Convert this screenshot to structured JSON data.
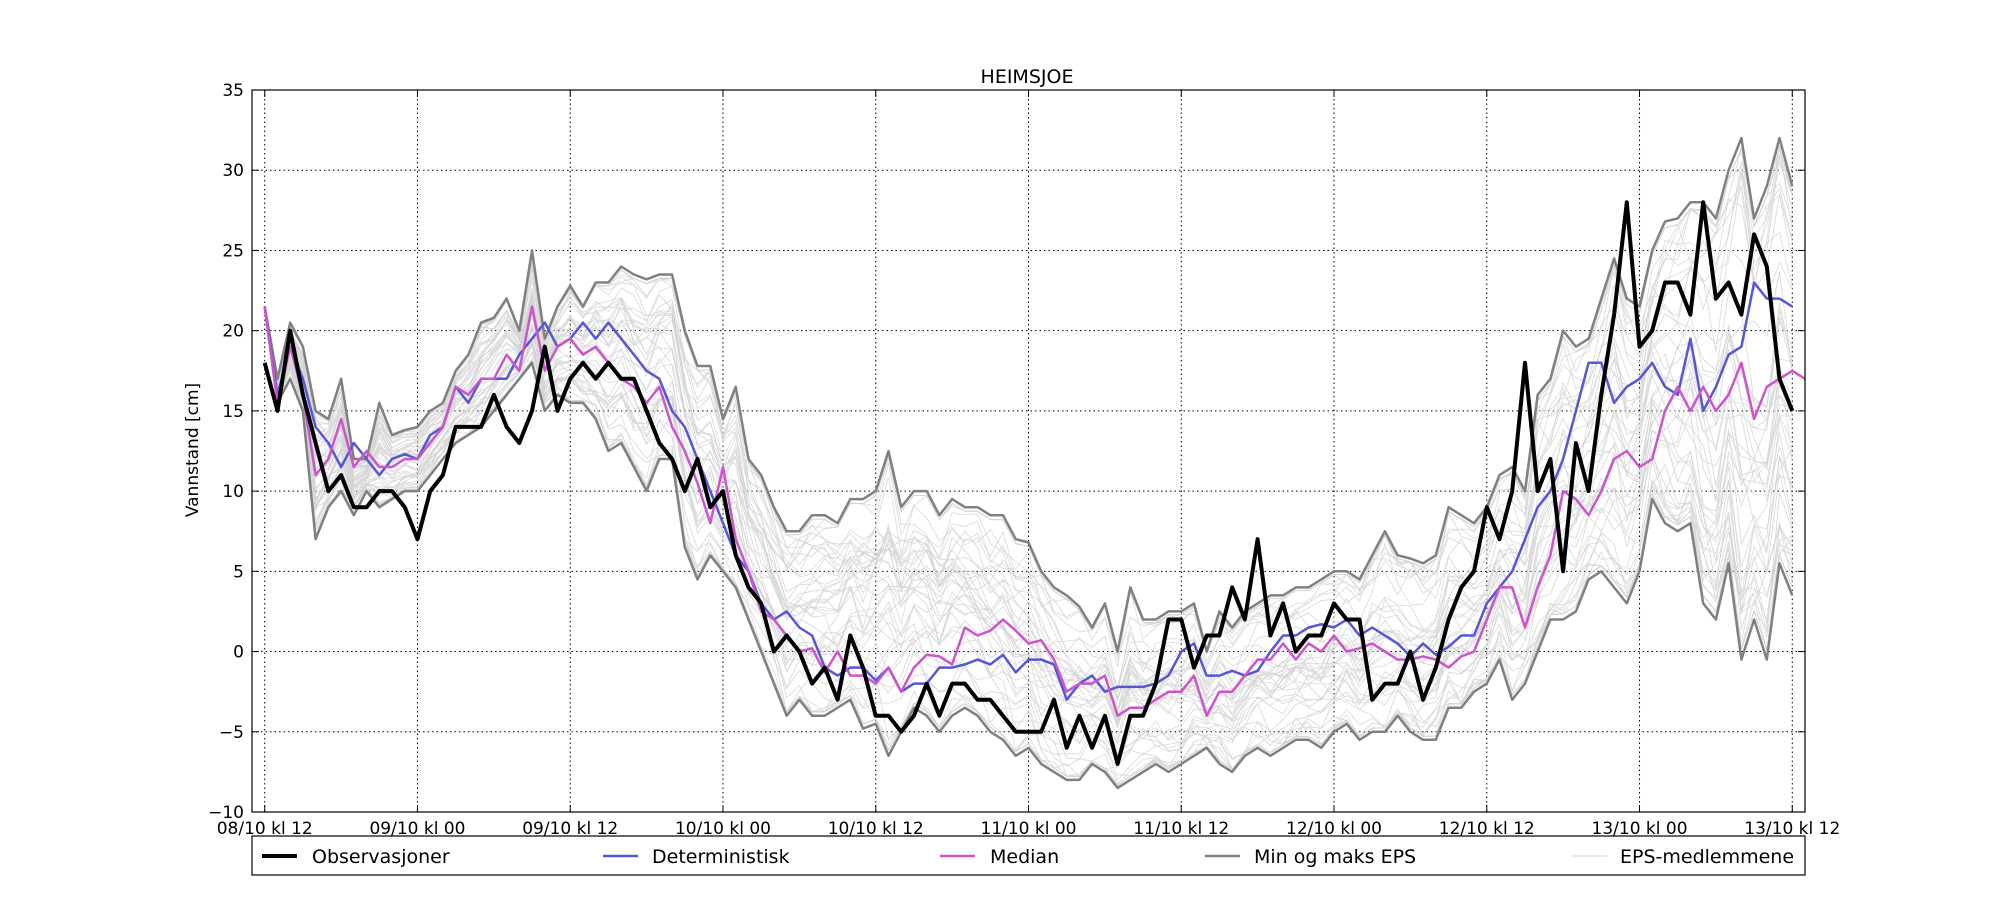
{
  "chart_data": {
    "type": "line",
    "title": "HEIMSJOE",
    "xlabel": "",
    "ylabel": "Vannstand [cm]",
    "x_unit": "hours from 08/10 kl 12",
    "xlim": [
      -1,
      121
    ],
    "ylim": [
      -10,
      35
    ],
    "yticks": [
      -10,
      -5,
      0,
      5,
      10,
      15,
      20,
      25,
      30,
      35
    ],
    "xticks": [
      {
        "x": 0,
        "label": "08/10 kl 12"
      },
      {
        "x": 12,
        "label": "09/10 kl 00"
      },
      {
        "x": 24,
        "label": "09/10 kl 12"
      },
      {
        "x": 36,
        "label": "10/10 kl 00"
      },
      {
        "x": 48,
        "label": "10/10 kl 12"
      },
      {
        "x": 60,
        "label": "11/10 kl 00"
      },
      {
        "x": 72,
        "label": "11/10 kl 12"
      },
      {
        "x": 84,
        "label": "12/10 kl 00"
      },
      {
        "x": 96,
        "label": "12/10 kl 12"
      },
      {
        "x": 108,
        "label": "13/10 kl 00"
      },
      {
        "x": 120,
        "label": "13/10 kl 12"
      }
    ],
    "grid": true,
    "legend_position": "bottom",
    "eps_members_count": 50,
    "series": [
      {
        "name": "Observasjoner",
        "color": "#000000",
        "width": 4,
        "x_start": 0,
        "values": [
          18,
          15,
          20,
          16,
          13,
          10,
          11,
          9,
          9,
          10,
          10,
          9,
          7,
          10,
          11,
          14,
          14,
          14,
          16,
          14,
          13,
          15,
          19,
          15,
          17,
          18,
          17,
          18,
          17,
          17,
          15,
          13,
          12,
          10,
          12,
          9,
          10,
          6,
          4,
          3,
          0,
          1,
          0,
          -2,
          -1,
          -3,
          1,
          -1,
          -4,
          -4,
          -5,
          -4,
          -2,
          -4,
          -2,
          -2,
          -3,
          -3,
          -4,
          -5,
          -5,
          -5,
          -3,
          -6,
          -4,
          -6,
          -4,
          -7,
          -4,
          -4,
          -2,
          2,
          2,
          -1,
          1,
          1,
          4,
          2,
          7,
          1,
          3,
          0,
          1,
          1,
          3,
          2,
          2,
          -3,
          -2,
          -2,
          0,
          -3,
          -1,
          2,
          4,
          5,
          9,
          7,
          10,
          18,
          10,
          12,
          5,
          13,
          10,
          16,
          21,
          28,
          19,
          20,
          23,
          23,
          21,
          28,
          22,
          23,
          21,
          26,
          24,
          17,
          15
        ]
      },
      {
        "name": "Deterministisk",
        "color": "#5757d4",
        "width": 2.5,
        "x_start": 0,
        "values": [
          21.5,
          16,
          19,
          17,
          14,
          13,
          11.5,
          13,
          12,
          11,
          12,
          12.3,
          12,
          13.5,
          14,
          16.5,
          15.5,
          17,
          17,
          17,
          18.5,
          19.5,
          20.5,
          19,
          19.5,
          20.5,
          19.5,
          20.5,
          19.5,
          18.5,
          17.5,
          17,
          15,
          14,
          12,
          10,
          8,
          6,
          5,
          3,
          2,
          2.5,
          1.5,
          1,
          -1,
          -1.5,
          -1,
          -1,
          -1.8,
          -1,
          -2.5,
          -2,
          -2,
          -1,
          -1,
          -0.8,
          -0.5,
          -0.8,
          -0.2,
          -1.3,
          -0.5,
          -0.5,
          -0.8,
          -3,
          -2,
          -1.5,
          -2.5,
          -2.2,
          -2.2,
          -2.2,
          -2,
          -1.5,
          0,
          0.5,
          -1.5,
          -1.5,
          -1.2,
          -1.5,
          -1.2,
          0,
          1,
          1,
          1.5,
          1.7,
          1.5,
          2,
          1,
          1.5,
          1,
          0.5,
          -0.3,
          0.5,
          -0.2,
          0.3,
          1,
          1,
          3,
          4,
          5,
          7,
          9,
          10,
          12,
          15,
          18,
          18,
          15.5,
          16.5,
          17,
          18,
          16.5,
          16,
          19.5,
          15,
          16.5,
          18.5,
          19,
          23,
          22,
          22,
          21.5
        ]
      },
      {
        "name": "Median",
        "color": "#cc55cc",
        "width": 2.5,
        "x_start": 0,
        "values": [
          21.5,
          15.5,
          19,
          16,
          11,
          12,
          14.5,
          11.5,
          12.5,
          11.5,
          11.5,
          12,
          12,
          13,
          14,
          16.5,
          16,
          17,
          17,
          18.5,
          17.5,
          21.5,
          17.5,
          19,
          19.5,
          18.5,
          19,
          18,
          17,
          16.5,
          15.5,
          16.5,
          14,
          12.5,
          10.5,
          8,
          11.5,
          7,
          5,
          2.5,
          2,
          1,
          0,
          0.2,
          -1.3,
          0,
          -1.5,
          -1.5,
          -2,
          -1,
          -2.5,
          -1,
          -0.2,
          -0.3,
          -0.8,
          1.5,
          1,
          1.3,
          2,
          1.3,
          0.5,
          0.7,
          -0.5,
          -2.5,
          -2,
          -2,
          -1.5,
          -4,
          -3.5,
          -3.5,
          -3,
          -2.5,
          -2.5,
          -1.5,
          -4,
          -2.5,
          -2.5,
          -1.5,
          -0.5,
          -0.5,
          0.5,
          -0.5,
          0.5,
          0,
          1,
          0,
          0.2,
          0.5,
          0,
          -0.5,
          -0.5,
          -0.3,
          -0.5,
          -1,
          -0.3,
          0,
          2,
          4,
          4,
          1.5,
          4,
          6,
          10,
          9.5,
          8.5,
          10,
          12,
          12.5,
          11.5,
          12,
          15,
          16.5,
          15,
          16.5,
          15,
          16,
          18,
          14.5,
          16.5,
          17,
          17.5,
          17
        ]
      },
      {
        "name": "Min og maks EPS",
        "color": "#808080",
        "width": 2.5,
        "x_start": 0,
        "values": [
          21.5,
          17,
          20.5,
          19,
          15,
          14.5,
          17,
          12,
          12,
          15.5,
          13.5,
          13.8,
          14,
          15,
          15.5,
          17.5,
          18.5,
          20.5,
          20.8,
          22,
          20,
          25,
          19.5,
          21.5,
          22.8,
          21.5,
          23,
          23,
          24,
          23.5,
          23.2,
          23.5,
          23.5,
          20,
          17.8,
          17.8,
          14.5,
          16.5,
          12,
          11,
          9,
          7.5,
          7.5,
          8.5,
          8.5,
          8,
          9.5,
          9.5,
          10,
          12.5,
          9,
          10,
          10,
          8.5,
          9.5,
          9,
          9,
          8.5,
          8.5,
          7,
          6.8,
          5,
          4,
          3.5,
          2.8,
          1.5,
          3,
          0,
          4,
          2,
          2,
          2.5,
          2.5,
          3,
          0,
          2.5,
          1.5,
          2.5,
          3,
          3.5,
          3.5,
          4,
          4,
          4.5,
          5,
          5,
          4.5,
          6,
          7.5,
          6,
          5.8,
          5.5,
          6,
          9,
          8.5,
          8,
          9,
          11,
          11.5,
          10,
          16,
          17,
          20,
          19,
          19.5,
          22,
          24.5,
          22,
          21.5,
          25,
          26.8,
          27,
          28,
          28,
          27,
          30,
          32,
          27,
          29,
          32,
          29
        ]
      },
      {
        "name": "Min og maks EPS",
        "color": "#808080",
        "width": 2.5,
        "x_start": 0,
        "values": [
          21.5,
          15.5,
          17,
          15,
          7,
          9,
          10,
          8.5,
          10,
          9,
          9.5,
          10,
          10,
          11,
          12,
          13,
          13.5,
          14,
          15,
          16,
          17,
          18,
          15,
          16,
          15.5,
          15.5,
          14.5,
          12.5,
          13,
          11.5,
          10,
          12,
          12,
          6.5,
          4.5,
          6,
          5,
          4,
          2,
          0,
          -2,
          -4,
          -3,
          -4,
          -4,
          -3.5,
          -3,
          -4.8,
          -4.5,
          -6.5,
          -5,
          -3.5,
          -4,
          -5,
          -4,
          -3.5,
          -4,
          -5,
          -5.5,
          -6.5,
          -6,
          -7,
          -7.5,
          -8,
          -8,
          -7,
          -7.5,
          -8.5,
          -8,
          -7.5,
          -7,
          -7.5,
          -7,
          -6.5,
          -6,
          -7,
          -7.5,
          -6.5,
          -6,
          -6.5,
          -6,
          -5.5,
          -5.5,
          -6,
          -5,
          -4.5,
          -5.5,
          -5,
          -5,
          -4,
          -5,
          -5.5,
          -5.5,
          -3.5,
          -3.5,
          -2.5,
          -2,
          -0.5,
          -3,
          -2,
          0,
          2,
          2,
          2.5,
          4.5,
          5,
          4,
          3,
          5,
          9.5,
          8,
          7.5,
          8,
          3,
          2,
          5.5,
          -0.5,
          2,
          -0.5,
          5.5,
          3.5
        ]
      }
    ],
    "eps_members_label": "EPS-medlemmene",
    "eps_members_color": "#d3d3d3"
  }
}
